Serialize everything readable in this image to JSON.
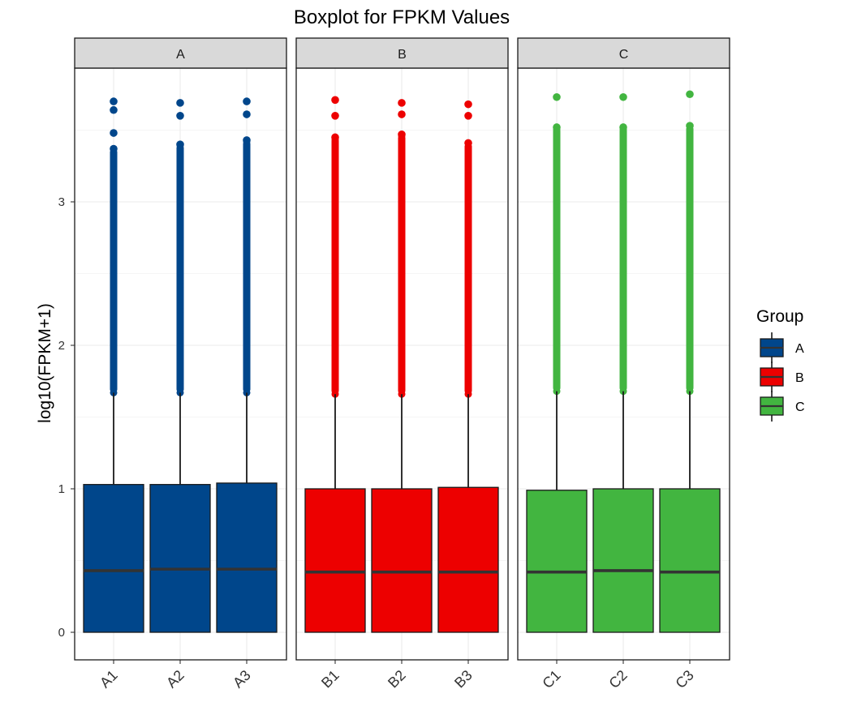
{
  "chart_data": {
    "type": "boxplot",
    "title": "Boxplot for FPKM Values",
    "ylabel": "log10(FPKM+1)",
    "ylim": [
      -0.1,
      3.95
    ],
    "yticks": [
      0,
      1,
      2,
      3
    ],
    "grid": true,
    "legend": {
      "title": "Group",
      "position": "right",
      "entries": [
        "A",
        "B",
        "C"
      ]
    },
    "colors": {
      "A": "#00468B",
      "B": "#ED0000",
      "C": "#42B540"
    },
    "facets": [
      {
        "strip": "A",
        "group": "A",
        "samples": [
          {
            "name": "A1",
            "min": 0,
            "q1": 0,
            "median": 0.43,
            "q3": 1.03,
            "whisker_high": 1.67,
            "outlier_max": 3.7,
            "outliers_top": [
              3.7,
              3.64,
              3.48,
              3.37
            ]
          },
          {
            "name": "A2",
            "min": 0,
            "q1": 0,
            "median": 0.44,
            "q3": 1.03,
            "whisker_high": 1.67,
            "outlier_max": 3.69,
            "outliers_top": [
              3.69,
              3.6,
              3.4
            ]
          },
          {
            "name": "A3",
            "min": 0,
            "q1": 0,
            "median": 0.44,
            "q3": 1.04,
            "whisker_high": 1.67,
            "outlier_max": 3.7,
            "outliers_top": [
              3.7,
              3.61,
              3.43
            ]
          }
        ]
      },
      {
        "strip": "B",
        "group": "B",
        "samples": [
          {
            "name": "B1",
            "min": 0,
            "q1": 0,
            "median": 0.42,
            "q3": 1.0,
            "whisker_high": 1.66,
            "outlier_max": 3.71,
            "outliers_top": [
              3.71,
              3.6,
              3.45
            ]
          },
          {
            "name": "B2",
            "min": 0,
            "q1": 0,
            "median": 0.42,
            "q3": 1.0,
            "whisker_high": 1.66,
            "outlier_max": 3.69,
            "outliers_top": [
              3.69,
              3.61,
              3.47
            ]
          },
          {
            "name": "B3",
            "min": 0,
            "q1": 0,
            "median": 0.42,
            "q3": 1.01,
            "whisker_high": 1.66,
            "outlier_max": 3.68,
            "outliers_top": [
              3.68,
              3.6,
              3.41
            ]
          }
        ]
      },
      {
        "strip": "C",
        "group": "C",
        "samples": [
          {
            "name": "C1",
            "min": 0,
            "q1": 0,
            "median": 0.42,
            "q3": 0.99,
            "whisker_high": 1.68,
            "outlier_max": 3.73,
            "outliers_top": [
              3.73,
              3.52
            ]
          },
          {
            "name": "C2",
            "min": 0,
            "q1": 0,
            "median": 0.43,
            "q3": 1.0,
            "whisker_high": 1.68,
            "outlier_max": 3.73,
            "outliers_top": [
              3.73,
              3.52
            ]
          },
          {
            "name": "C3",
            "min": 0,
            "q1": 0,
            "median": 0.42,
            "q3": 1.0,
            "whisker_high": 1.68,
            "outlier_max": 3.75,
            "outliers_top": [
              3.75,
              3.53
            ]
          }
        ]
      }
    ]
  }
}
